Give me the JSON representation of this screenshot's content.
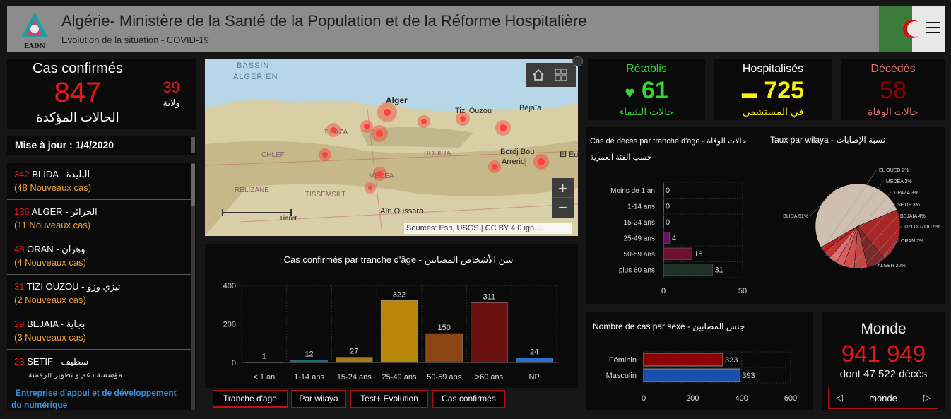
{
  "header": {
    "title": "Algérie- Ministère de la Santé de la Population et de la Réforme Hospitalière",
    "subtitle": "Evolution de la situation - COVID-19",
    "logo_text": "EADN"
  },
  "confirmed": {
    "title": "Cas confirmés",
    "value": "847",
    "arabic": "الحالات المؤكدة",
    "wilaya_count": "39",
    "wilaya_label": "ولاية"
  },
  "update": {
    "label": "Mise à jour : 1/4/2020"
  },
  "wilaya_list": [
    {
      "count": "342",
      "name": "BLIDA -",
      "arabic": "البليدة",
      "new": "(48 Nouveaux cas)"
    },
    {
      "count": "136",
      "name": "ALGER -",
      "arabic": "الجزائر",
      "new": "(11 Nouveaux cas)"
    },
    {
      "count": "48",
      "name": "ORAN -",
      "arabic": "وهران",
      "new": "(4 Nouveaux cas)"
    },
    {
      "count": "31",
      "name": "TIZI OUZOU -",
      "arabic": "تيزي وزو",
      "new": "(2 Nouveaux cas)"
    },
    {
      "count": "29",
      "name": "BEJAIA -",
      "arabic": "بجاية",
      "new": "(3 Nouveaux cas)"
    },
    {
      "count": "23",
      "name": "SETIF -",
      "arabic": "سطيف",
      "new": ""
    }
  ],
  "footer_left": {
    "partial": "مؤسسة دعم و تطوير الرقمنة",
    "line1": "Entreprise d'appui et de développement",
    "line2": "du numérique"
  },
  "map": {
    "labels": {
      "bassin": "BASSIN",
      "algerien": "ALGÉRIEN",
      "alger": "Alger",
      "tizi": "Tizi Ouzou",
      "bejaia": "Béjaïa",
      "bordj1": "Bordj Bou",
      "bordj2": "Arreridj",
      "chlef": "CHLEF",
      "medea": "MEDEA",
      "bouira": "BOUIRA",
      "relizane": "RELIZANE",
      "tissemsilt": "TISSEMSILT",
      "ain": "Aïn Oussara",
      "tiaret": "Tiaret",
      "eleu": "El Eu",
      "tipaza": "TIPAZA"
    },
    "attribution": "Sources: Esri, USGS | CC BY 4.0 ign....",
    "zoom_in": "+",
    "zoom_out": "−"
  },
  "kpis": {
    "recovered": {
      "title": "Rétablis",
      "value": "61",
      "arabic": "حالات الشفاء",
      "color": "#33d633"
    },
    "hospitalized": {
      "title": "Hospitalisés",
      "value": "725",
      "arabic": "في المستشفى",
      "color": "#f5f20c"
    },
    "deaths": {
      "title": "Décédés",
      "value": "58",
      "arabic": "حالات الوفاة",
      "color": "#8b0000"
    }
  },
  "monde": {
    "title": "Monde",
    "value": "941 949",
    "sub": "dont 47 522 décès",
    "nav_label": "monde"
  },
  "tabs": [
    "Tranche d'age",
    "Par wilaya",
    "Test+ Evolution",
    "Cas confirmés"
  ],
  "chart_data": [
    {
      "type": "bar",
      "title": "Cas confirmés par tranche d'âge - سن الأشخاص المصابين",
      "categories": [
        "< 1 an",
        "1-14 ans",
        "15-24 ans",
        "25-49 ans",
        "50-59 ans",
        ">60 ans",
        "NP"
      ],
      "values": [
        1,
        12,
        27,
        322,
        150,
        311,
        24
      ],
      "colors": [
        "#2f4f4f",
        "#1f6f7a",
        "#a87a1a",
        "#b8860b",
        "#8b4513",
        "#6b1010",
        "#2a6fd0"
      ],
      "ylim": [
        0,
        400
      ],
      "yticks": [
        0,
        200,
        400
      ],
      "grid": true
    },
    {
      "type": "bar",
      "orientation": "horizontal",
      "title": "Cas de décès par tranche d'age - حالات الوفاة",
      "subtitle": "حسب الفئة العمرية",
      "categories": [
        "Moins de 1 an",
        "1-14 ans",
        "15-24 ans",
        "25-49 ans",
        "50-59 ans",
        "plus 60 ans"
      ],
      "values": [
        0,
        0,
        0,
        4,
        18,
        31
      ],
      "colors": [
        "#333333",
        "#333333",
        "#333333",
        "#6a1060",
        "#6a1030",
        "#1e3326"
      ],
      "xlim": [
        0,
        50
      ],
      "xticks": [
        0,
        50
      ],
      "grid": true
    },
    {
      "type": "pie",
      "title": "Taux par wilaya - نسبة الإصابات",
      "labels": [
        "BLIDA 51%",
        "ALGER 20%",
        "ORAN 7%",
        "TIZI OUZOU 5%",
        "BEJAIA 4%",
        "SETIF 3%",
        "TIPAZA 3%",
        "MEDEA 3%",
        "EL OUED 2%"
      ],
      "values": [
        51,
        20,
        7,
        5,
        4,
        3,
        3,
        3,
        2
      ],
      "colors": [
        "#cfbfb0",
        "#a82828",
        "#7a2a2a",
        "#c04848",
        "#d05050",
        "#d86060",
        "#e07070",
        "#c83030",
        "#b82020"
      ]
    },
    {
      "type": "bar",
      "orientation": "horizontal",
      "title": "Nombre de cas par sexe - جنس المصابين",
      "categories": [
        "Féminin",
        "Masculin"
      ],
      "values": [
        323,
        393
      ],
      "colors": [
        "#8b0000",
        "#1a4fb0"
      ],
      "xlim": [
        0,
        600
      ],
      "xticks": [
        0,
        200,
        400,
        600
      ],
      "grid": true
    }
  ]
}
